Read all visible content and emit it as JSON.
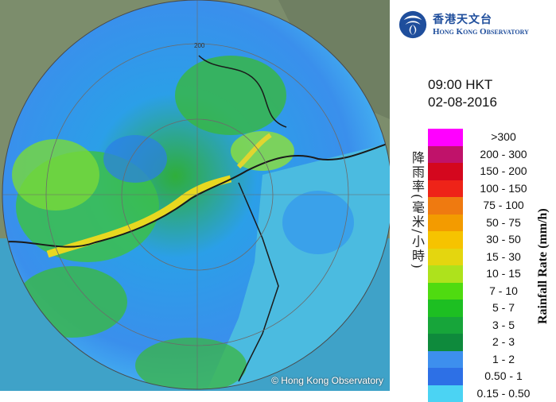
{
  "radar": {
    "copyright": "© Hong Kong Observatory",
    "range_label": "200",
    "colors": {
      "sea": "#3fa2c8",
      "land": "#7a8a6e",
      "light_blue": "#38b9f4",
      "mid_blue": "#2f7fe6",
      "green": "#2ea043",
      "bright_green": "#4bcf3a",
      "yellow": "#e6d820"
    }
  },
  "logo": {
    "chinese": "香港天文台",
    "english": "Hong Kong Observatory",
    "icon": "hko-logo-icon"
  },
  "timestamp": {
    "time": "09:00 HKT",
    "date": "02-08-2016"
  },
  "legend": {
    "title_en": "Rainfall Rate (mm/h)",
    "title_cn": "降雨率(毫米/小時)",
    "items": [
      {
        "label": ">300",
        "color": "#ff00ff"
      },
      {
        "label": "200 - 300",
        "color": "#c0126a"
      },
      {
        "label": "150 - 200",
        "color": "#d4071e"
      },
      {
        "label": "100 - 150",
        "color": "#ee2318"
      },
      {
        "label": "75 - 100",
        "color": "#ef7a10"
      },
      {
        "label": "50 - 75",
        "color": "#f39b00"
      },
      {
        "label": "30 - 50",
        "color": "#f6c300"
      },
      {
        "label": "15 - 30",
        "color": "#e4d60f"
      },
      {
        "label": "10 - 15",
        "color": "#aee21c"
      },
      {
        "label": "7 - 10",
        "color": "#4fdb10"
      },
      {
        "label": "5 - 7",
        "color": "#1dbf22"
      },
      {
        "label": "3 - 5",
        "color": "#17a53a"
      },
      {
        "label": "2 - 3",
        "color": "#0e8a3c"
      },
      {
        "label": "1 - 2",
        "color": "#3d8fee"
      },
      {
        "label": "0.50 - 1",
        "color": "#2d70e6"
      },
      {
        "label": "0.15 - 0.50",
        "color": "#4bd3f3"
      }
    ]
  }
}
